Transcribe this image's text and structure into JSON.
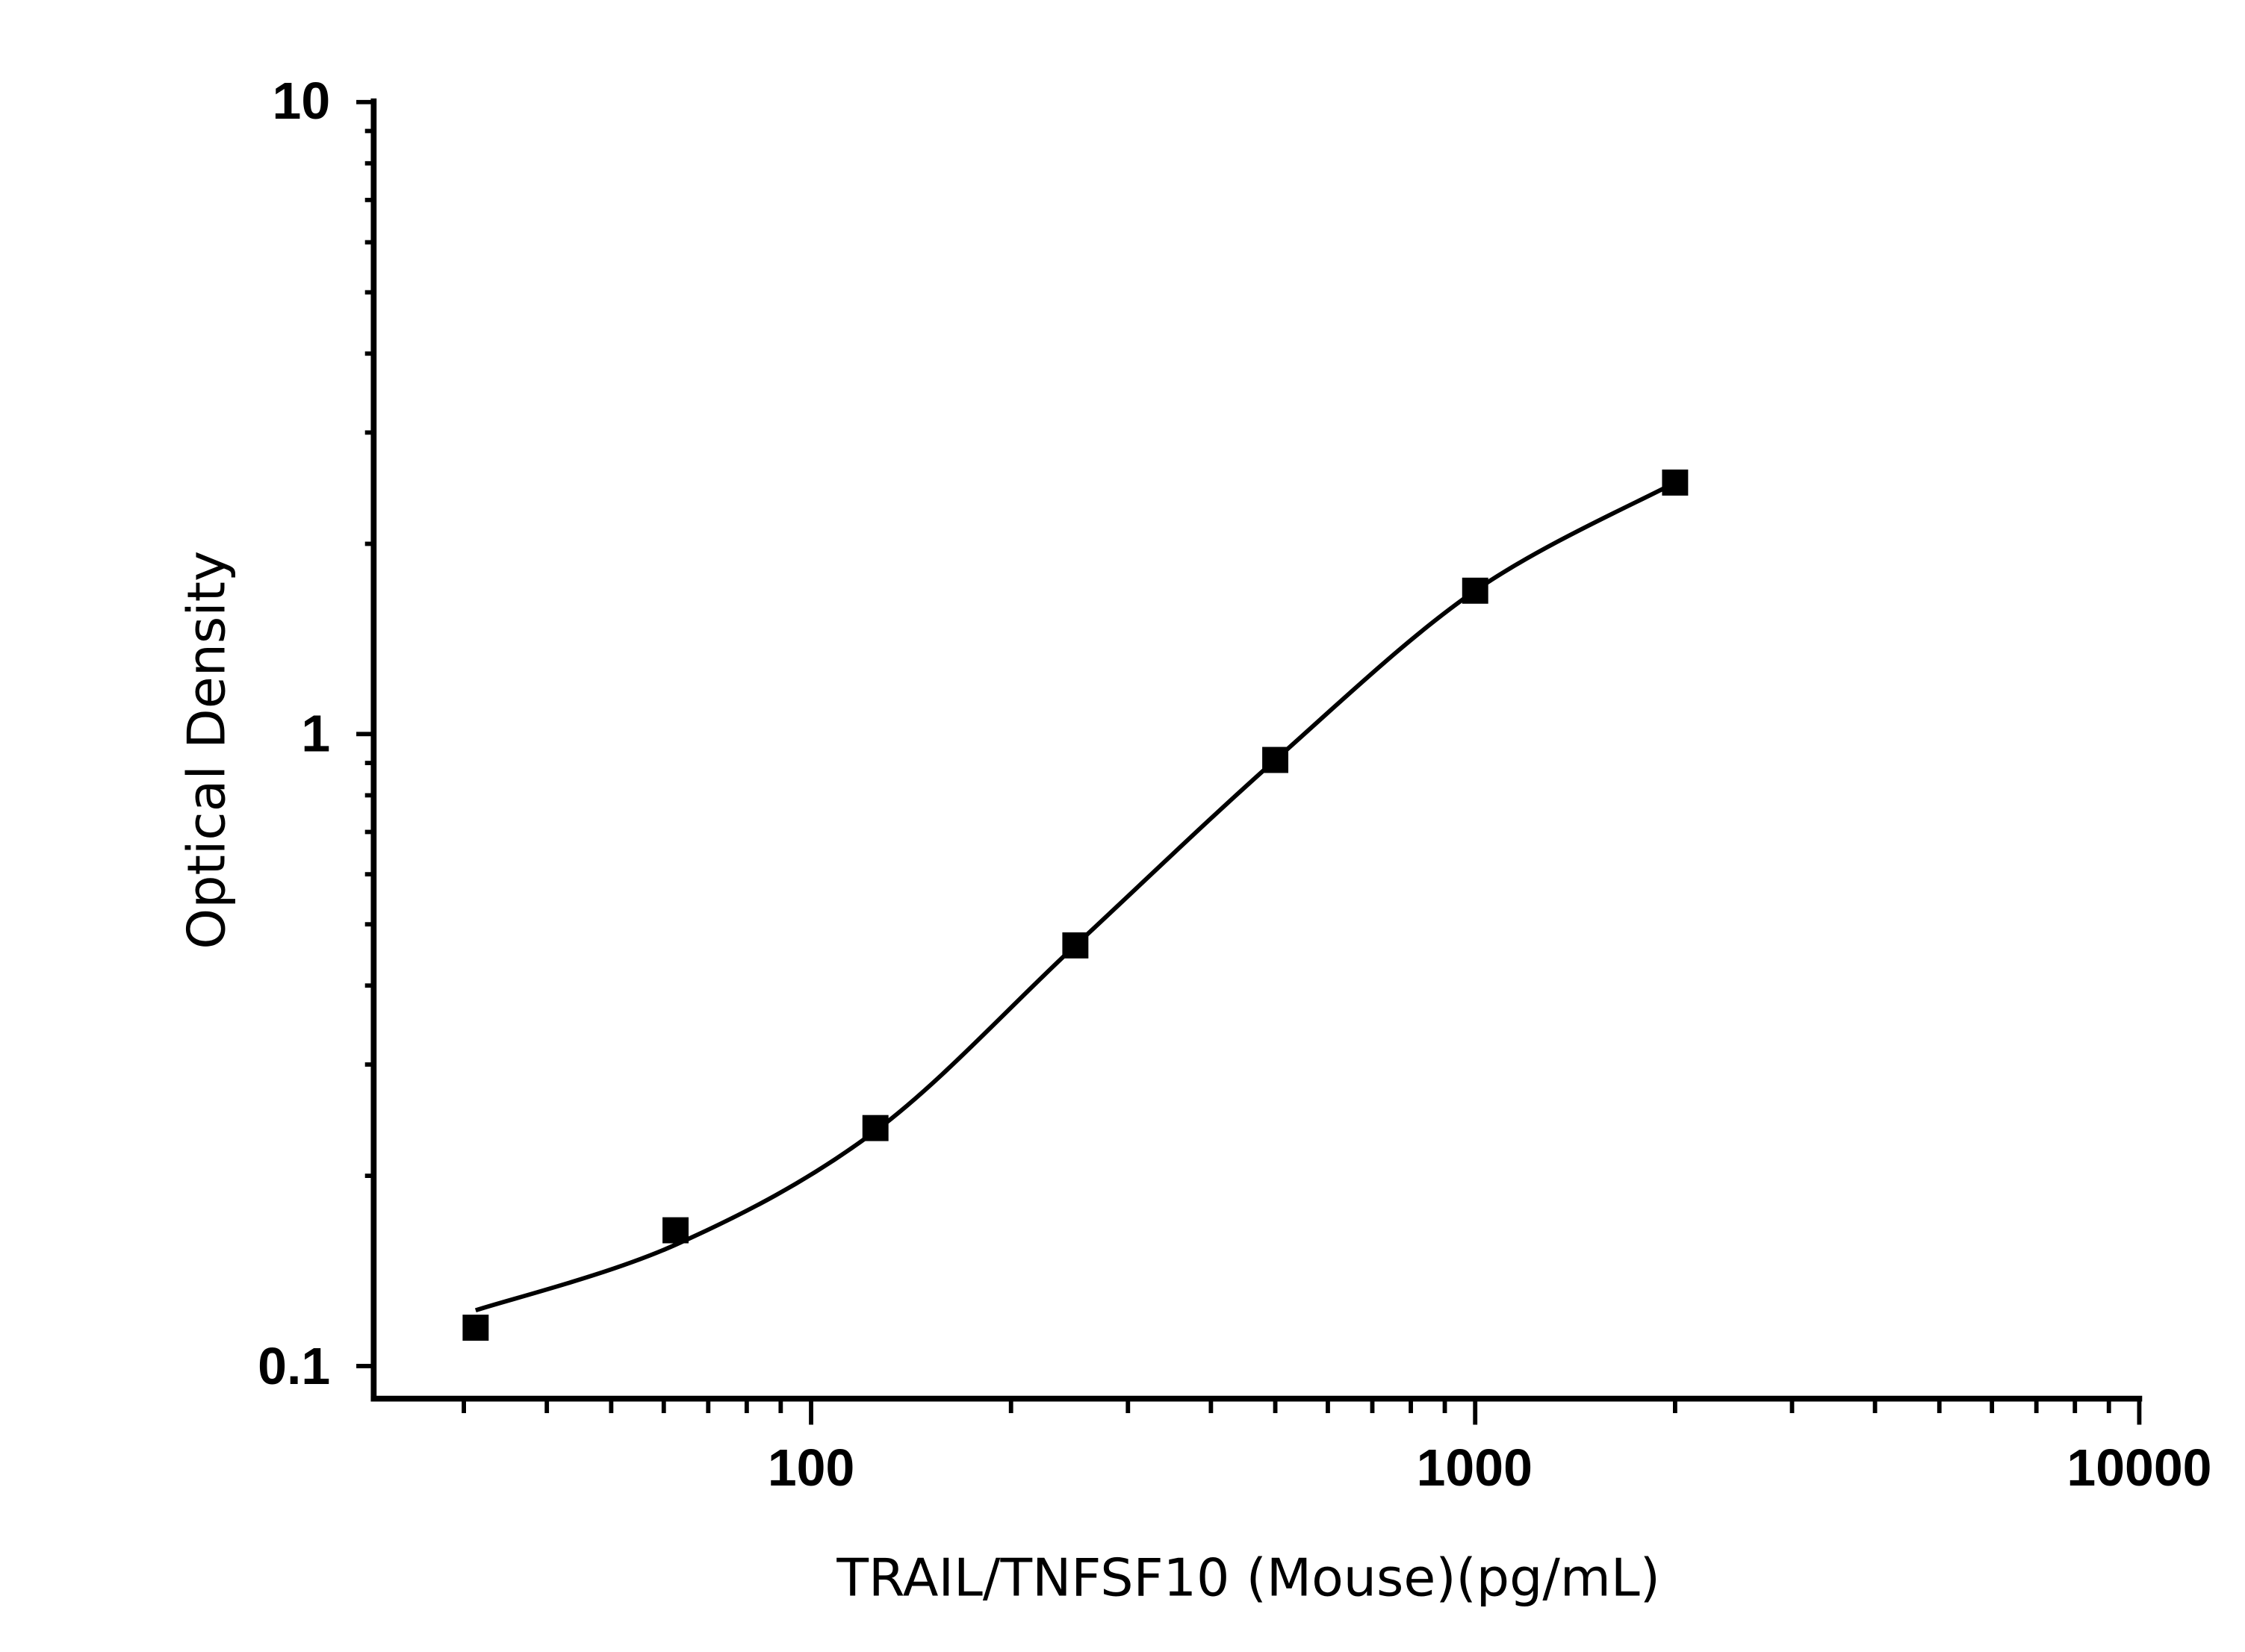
{
  "chart_data": {
    "type": "scatter",
    "title": "",
    "xlabel": "TRAIL/TNFSF10 (Mouse)(pg/mL)",
    "ylabel": "Optical Density",
    "xscale": "log",
    "yscale": "log",
    "xlim": [
      22,
      10000
    ],
    "ylim": [
      0.095,
      10
    ],
    "x_tick_labels": [
      "100",
      "1000",
      "10000"
    ],
    "y_tick_labels": [
      "0.1",
      "1",
      "10"
    ],
    "grid": false,
    "legend": null,
    "series": [
      {
        "name": "Standard points",
        "marker": "square",
        "color": "#000000",
        "x": [
          31.25,
          62.5,
          125,
          250,
          500,
          1000,
          2000
        ],
        "y": [
          0.115,
          0.164,
          0.238,
          0.463,
          0.91,
          1.686,
          2.5
        ]
      },
      {
        "name": "Fitted curve (4PL)",
        "line": "solid",
        "color": "#000000",
        "x_range": [
          31.25,
          2000
        ]
      }
    ]
  },
  "labels": {
    "xlabel": "TRAIL/TNFSF10 (Mouse)(pg/mL)",
    "ylabel": "Optical Density",
    "x_ticks": [
      "100",
      "1000",
      "10000"
    ],
    "y_ticks": [
      "0.1",
      "1",
      "10"
    ]
  }
}
